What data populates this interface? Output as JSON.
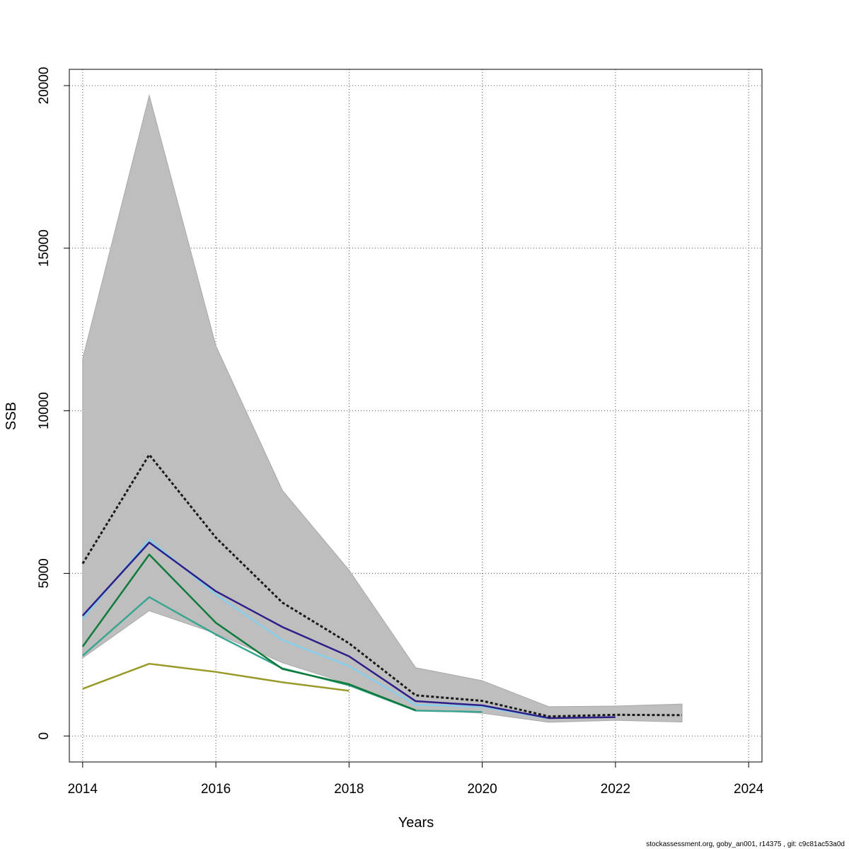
{
  "chart_data": {
    "type": "line",
    "xlabel": "Years",
    "ylabel": "SSB",
    "xlim": [
      2013.8,
      2024.2
    ],
    "ylim": [
      -800,
      20500
    ],
    "x_ticks": [
      2014,
      2016,
      2018,
      2020,
      2022,
      2024
    ],
    "y_ticks": [
      0,
      5000,
      10000,
      15000,
      20000
    ],
    "grid": true,
    "legend": "none",
    "colors": {
      "band": "#bebebe",
      "band_edge": "#a8a8a8",
      "black": "#1a1a1a",
      "navy": "#2c1f8a",
      "skyblue": "#87ceeb",
      "green": "#0e7a3c",
      "teal": "#3aa590",
      "olive": "#9a9a2a"
    },
    "band": {
      "x": [
        2014,
        2015,
        2016,
        2017,
        2018,
        2019,
        2020,
        2021,
        2022,
        2023
      ],
      "upper": [
        11600,
        19700,
        12000,
        7550,
        5100,
        2100,
        1700,
        900,
        920,
        980
      ],
      "lower": [
        2400,
        3850,
        3150,
        2250,
        1600,
        800,
        700,
        420,
        480,
        430
      ]
    },
    "series": [
      {
        "color_key": "olive",
        "dashed": false,
        "x": [
          2014,
          2015,
          2016,
          2017,
          2018
        ],
        "y": [
          1450,
          2220,
          1970,
          1650,
          1390
        ]
      },
      {
        "color_key": "teal",
        "dashed": false,
        "x": [
          2014,
          2015,
          2016,
          2017,
          2018,
          2019,
          2020
        ],
        "y": [
          2470,
          4270,
          3120,
          2080,
          1560,
          780,
          740
        ]
      },
      {
        "color_key": "green",
        "dashed": false,
        "x": [
          2014,
          2015,
          2016,
          2017,
          2018,
          2019
        ],
        "y": [
          2750,
          5580,
          3480,
          2060,
          1590,
          790
        ]
      },
      {
        "color_key": "skyblue",
        "dashed": false,
        "x": [
          2014,
          2015,
          2016,
          2017,
          2018,
          2019,
          2020,
          2021
        ],
        "y": [
          3600,
          6050,
          4350,
          2950,
          2150,
          960,
          900,
          540
        ]
      },
      {
        "color_key": "navy",
        "dashed": false,
        "x": [
          2014,
          2015,
          2016,
          2017,
          2018,
          2019,
          2020,
          2021,
          2022
        ],
        "y": [
          3700,
          5950,
          4450,
          3350,
          2450,
          1070,
          940,
          550,
          580
        ]
      },
      {
        "color_key": "black",
        "dashed": true,
        "x": [
          2014,
          2015,
          2016,
          2017,
          2018,
          2019,
          2020,
          2021,
          2022,
          2023
        ],
        "y": [
          5300,
          8650,
          6100,
          4100,
          2850,
          1250,
          1080,
          600,
          650,
          640
        ]
      }
    ]
  },
  "footer": "stockassessment.org, goby_an001, r14375 , git: c9c81ac53a0d"
}
